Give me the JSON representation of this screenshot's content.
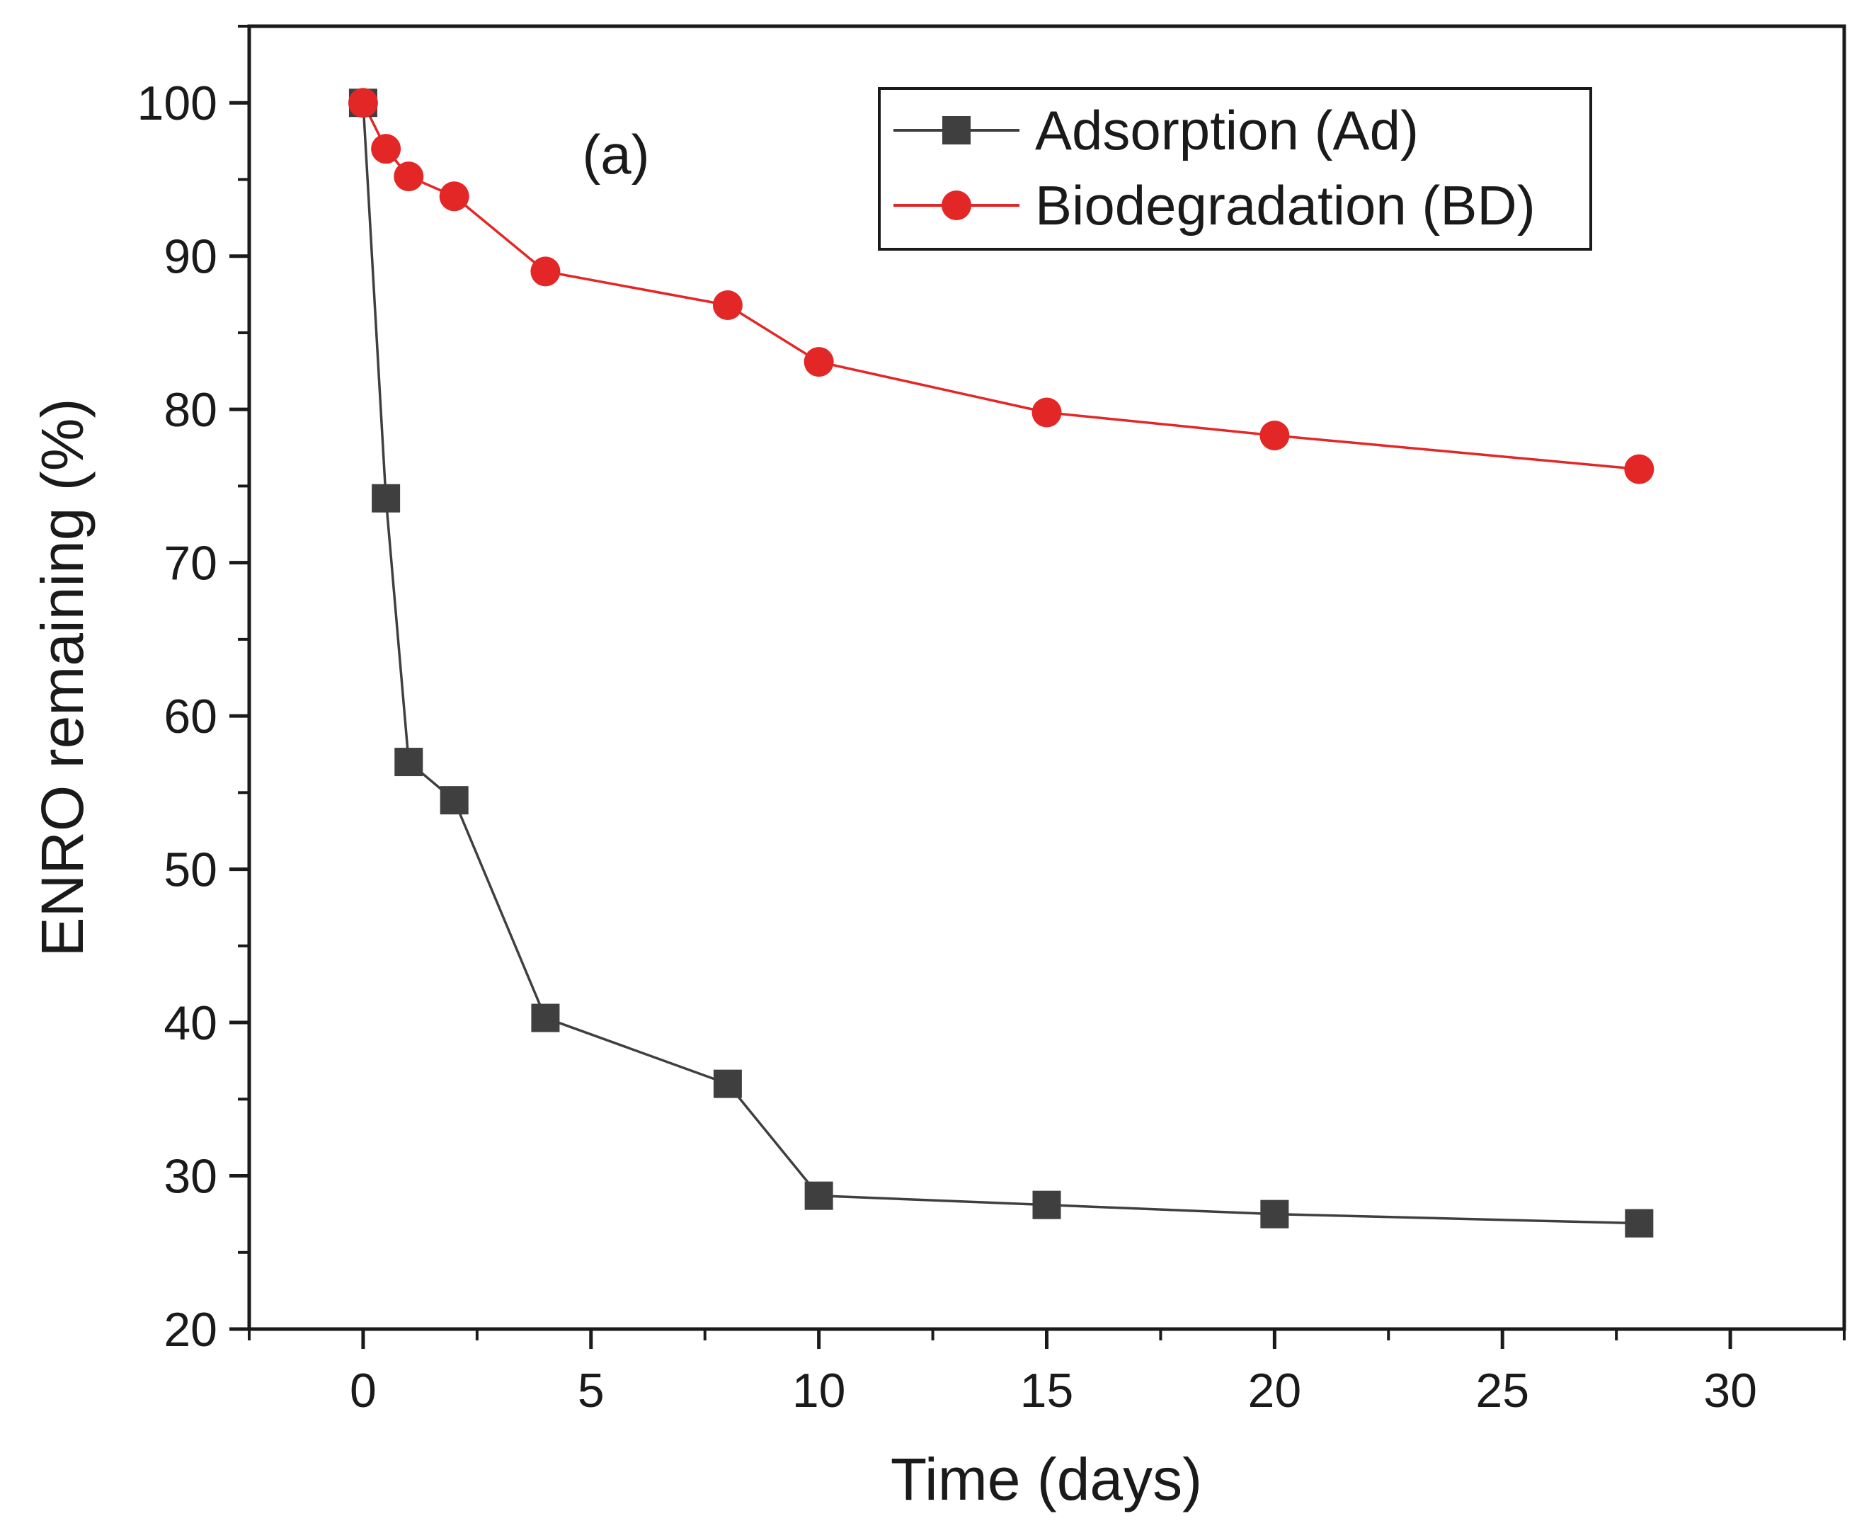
{
  "chart_data": {
    "type": "line",
    "title": "",
    "panel_label": "(a)",
    "xlabel": "Time (days)",
    "ylabel": "ENRO remaining (%)",
    "xlim": [
      -2.5,
      32.5
    ],
    "ylim": [
      20,
      105
    ],
    "xticks": [
      0,
      5,
      10,
      15,
      20,
      25,
      30
    ],
    "yticks": [
      20,
      30,
      40,
      50,
      60,
      70,
      80,
      90,
      100
    ],
    "grid": false,
    "legend_position": "top-right",
    "series": [
      {
        "name": "Adsorption (Ad)",
        "color": "#3f3f3f",
        "marker": "square",
        "x": [
          0,
          0.5,
          1,
          2,
          4,
          8,
          10,
          15,
          20,
          28
        ],
        "y": [
          100,
          74.2,
          57,
          54.5,
          40.3,
          36,
          28.7,
          28.1,
          27.5,
          26.9
        ]
      },
      {
        "name": "Biodegradation (BD)",
        "color": "#e32626",
        "marker": "circle",
        "x": [
          0,
          0.5,
          1,
          2,
          4,
          8,
          10,
          15,
          20,
          28
        ],
        "y": [
          100,
          97,
          95.2,
          93.9,
          89,
          86.8,
          83.1,
          79.8,
          78.3,
          76.1
        ]
      }
    ]
  }
}
